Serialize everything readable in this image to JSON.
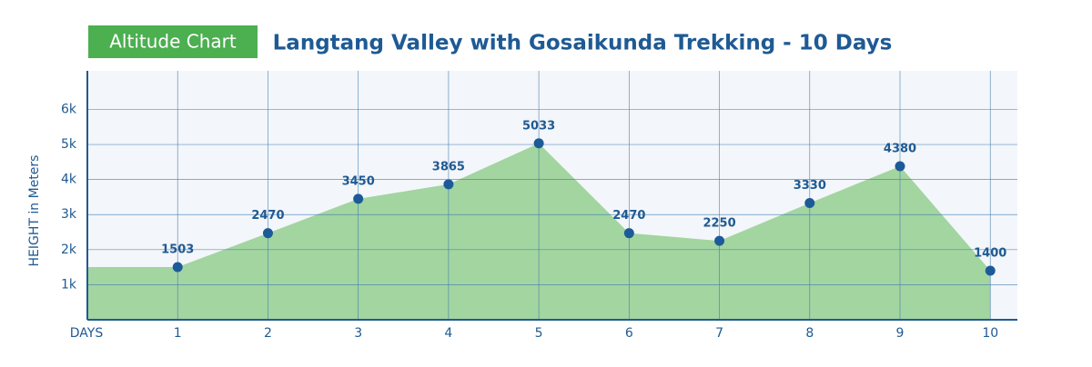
{
  "chart_data": {
    "type": "area",
    "badge": "Altitude Chart",
    "title": "Langtang Valley with Gosaikunda Trekking - 10 Days",
    "x_label": "DAYS",
    "y_label": "HEIGHT in Meters",
    "x": [
      1,
      2,
      3,
      4,
      5,
      6,
      7,
      8,
      9,
      10
    ],
    "values": [
      1503,
      2470,
      3450,
      3865,
      5033,
      2470,
      2250,
      3330,
      4380,
      1400
    ],
    "xlim": [
      0,
      10.3
    ],
    "xticks": [
      1,
      2,
      3,
      4,
      5,
      6,
      7,
      8,
      9,
      10
    ],
    "ylim": [
      0,
      7100
    ],
    "yticks": [
      {
        "value": 1000,
        "label": "1k"
      },
      {
        "value": 2000,
        "label": "2k"
      },
      {
        "value": 3000,
        "label": "3k"
      },
      {
        "value": 4000,
        "label": "4k"
      },
      {
        "value": 5000,
        "label": "5k"
      },
      {
        "value": 6000,
        "label": "6k"
      }
    ],
    "grid": true,
    "color": "#a2d5a0",
    "marker_color": "#1c5b98"
  }
}
